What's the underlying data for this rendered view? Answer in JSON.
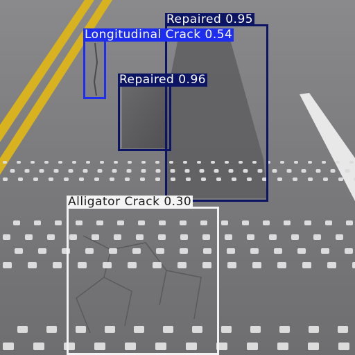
{
  "detections": [
    {
      "label": "Repaired",
      "score": "0.95",
      "color": "#0c1464"
    },
    {
      "label": "Longitudinal Crack",
      "score": "0.54",
      "color": "#1d2ef0"
    },
    {
      "label": "Repaired",
      "score": "0.96",
      "color": "#0c1464"
    },
    {
      "label": "Alligator Crack",
      "score": "0.30",
      "color": "#f4f4f4"
    }
  ]
}
